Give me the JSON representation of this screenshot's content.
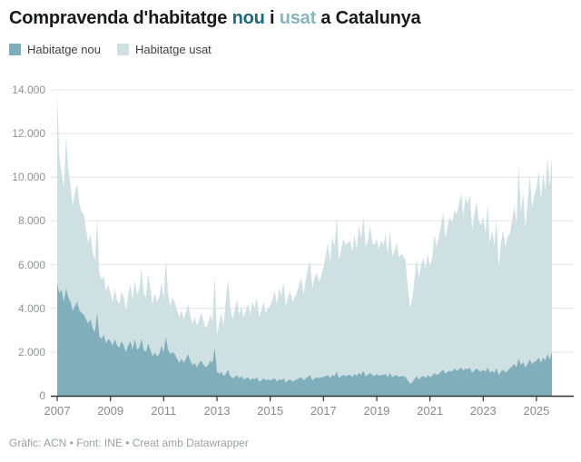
{
  "title": {
    "part1": "Compravenda d'habitatge ",
    "accent_nou": "nou",
    "part2": " i ",
    "accent_usat": "usat",
    "part3": " a Catalunya"
  },
  "colors": {
    "nou_title": "#1d6977",
    "usat_title": "#86b5be",
    "nou_area": "#81aebb",
    "usat_area": "#cfe0e3",
    "gridline": "#e4e4e4",
    "axis_line": "#333333",
    "axis_label": "#8f9194"
  },
  "legend": {
    "items": [
      {
        "label": "Habitatge nou",
        "color": "#81aebb"
      },
      {
        "label": "Habitatge usat",
        "color": "#cfe0e3"
      }
    ]
  },
  "footer": {
    "credit": "Gràfic: ACN • Font: INE • Creat amb Datawrapper"
  },
  "chart_data": {
    "type": "area",
    "stacked": true,
    "title": "Compravenda d'habitatge nou i usat a Catalunya",
    "frequency": "monthly",
    "x_start": "2007-01",
    "x_end": "2025-08",
    "ylim": [
      0,
      14000
    ],
    "grid": "horizontal",
    "legend_position": "top-left",
    "x_tick_labels": [
      "2007",
      "2009",
      "2011",
      "2013",
      "2015",
      "2017",
      "2019",
      "2021",
      "2023",
      "2025"
    ],
    "y_tick_values": [
      0,
      2000,
      4000,
      6000,
      8000,
      10000,
      12000,
      14000
    ],
    "y_tick_labels": [
      "0",
      "2.000",
      "4.000",
      "6.000",
      "8.000",
      "10.000",
      "12.000",
      "14.000"
    ],
    "series": [
      {
        "name": "Habitatge nou",
        "color": "#81aebb",
        "values": [
          5150,
          4700,
          4850,
          4300,
          4900,
          4500,
          4300,
          3900,
          4100,
          4300,
          3900,
          3800,
          3700,
          3500,
          3300,
          3500,
          3100,
          2900,
          3800,
          2700,
          2600,
          2800,
          2400,
          2600,
          2500,
          2300,
          2600,
          2300,
          2200,
          2500,
          2300,
          2000,
          2300,
          2500,
          2100,
          2600,
          2100,
          2200,
          2600,
          2100,
          2000,
          2400,
          2100,
          1800,
          2000,
          1800,
          1900,
          2300,
          2000,
          2700,
          2100,
          1900,
          2000,
          1900,
          1700,
          1500,
          1700,
          1500,
          1700,
          1900,
          1600,
          1400,
          1500,
          1300,
          1500,
          1600,
          1400,
          1300,
          1400,
          1600,
          1500,
          2200,
          1100,
          1000,
          1100,
          900,
          1000,
          1200,
          900,
          800,
          850,
          950,
          800,
          900,
          750,
          800,
          850,
          700,
          800,
          750,
          850,
          650,
          700,
          800,
          700,
          750,
          700,
          750,
          800,
          650,
          750,
          700,
          800,
          600,
          700,
          750,
          650,
          700,
          750,
          800,
          850,
          700,
          800,
          850,
          950,
          700,
          800,
          850,
          800,
          850,
          850,
          900,
          950,
          800,
          950,
          900,
          1100,
          800,
          900,
          950,
          900,
          950,
          950,
          850,
          1000,
          900,
          1050,
          950,
          1150,
          900,
          950,
          1050,
          950,
          900,
          1000,
          900,
          950,
          950,
          1000,
          850,
          1050,
          850,
          900,
          950,
          850,
          900,
          900,
          850,
          700,
          550,
          600,
          750,
          900,
          750,
          850,
          900,
          800,
          950,
          850,
          900,
          1050,
          950,
          1000,
          1100,
          1200,
          1000,
          1100,
          1150,
          1100,
          1250,
          1150,
          1200,
          1300,
          1150,
          1250,
          1200,
          1300,
          1050,
          1150,
          1250,
          1150,
          1100,
          1200,
          1100,
          1300,
          1050,
          1150,
          1050,
          1250,
          950,
          1100,
          1200,
          1050,
          1150,
          1250,
          1350,
          1450,
          1300,
          1700,
          1400,
          1550,
          1300,
          1450,
          1650,
          1450,
          1550,
          1600,
          1750,
          1500,
          1750,
          1600,
          1900,
          1650,
          2000
        ]
      },
      {
        "name": "Habitatge usat",
        "color": "#cfe0e3",
        "values": [
          8650,
          6200,
          5350,
          5200,
          6900,
          5900,
          5300,
          4800,
          5200,
          5400,
          4900,
          4600,
          4600,
          4100,
          3700,
          3900,
          3500,
          3300,
          4300,
          2900,
          2700,
          2700,
          2400,
          2500,
          2200,
          2000,
          2300,
          2100,
          2000,
          2300,
          2200,
          1900,
          2300,
          2600,
          2300,
          2700,
          2500,
          2700,
          3200,
          2600,
          2500,
          3200,
          2800,
          2400,
          2700,
          2500,
          2600,
          2900,
          2400,
          3600,
          2500,
          2200,
          2500,
          2400,
          2200,
          2100,
          2200,
          2000,
          2100,
          2300,
          2100,
          1900,
          2100,
          1900,
          2000,
          2200,
          2000,
          1800,
          1900,
          2100,
          1900,
          3300,
          1650,
          2300,
          2700,
          2300,
          3400,
          4100,
          3200,
          2700,
          3050,
          3450,
          2900,
          3200,
          2850,
          3100,
          3350,
          3000,
          3500,
          3250,
          3650,
          2950,
          3200,
          3500,
          3100,
          3250,
          3400,
          3650,
          4000,
          3550,
          4150,
          3900,
          4400,
          3500,
          3800,
          4050,
          3650,
          3800,
          3950,
          4300,
          4550,
          3900,
          4500,
          4950,
          5250,
          4200,
          4600,
          4750,
          4400,
          4650,
          5050,
          5500,
          6050,
          5300,
          6350,
          5900,
          7100,
          5400,
          5800,
          6250,
          6000,
          6050,
          6150,
          5750,
          6400,
          5800,
          6750,
          6250,
          7050,
          5900,
          6150,
          6750,
          6050,
          6000,
          6200,
          5800,
          6150,
          5950,
          6400,
          5650,
          6550,
          5550,
          5700,
          6050,
          5450,
          5600,
          5500,
          5350,
          4300,
          3500,
          3800,
          4550,
          5400,
          4650,
          5150,
          5400,
          5000,
          5550,
          5050,
          5400,
          6350,
          5850,
          6300,
          6700,
          7200,
          6200,
          6700,
          7050,
          6800,
          7250,
          7150,
          7500,
          8000,
          7050,
          7850,
          7600,
          7900,
          6550,
          7150,
          7650,
          6850,
          6700,
          7000,
          6300,
          7500,
          5950,
          6450,
          5850,
          6850,
          4950,
          5900,
          6400,
          5750,
          6150,
          6150,
          6650,
          7250,
          6600,
          8800,
          7000,
          7750,
          6400,
          7350,
          8450,
          7150,
          7650,
          7900,
          8550,
          7500,
          8450,
          7800,
          9000,
          7950,
          9000
        ]
      }
    ]
  }
}
